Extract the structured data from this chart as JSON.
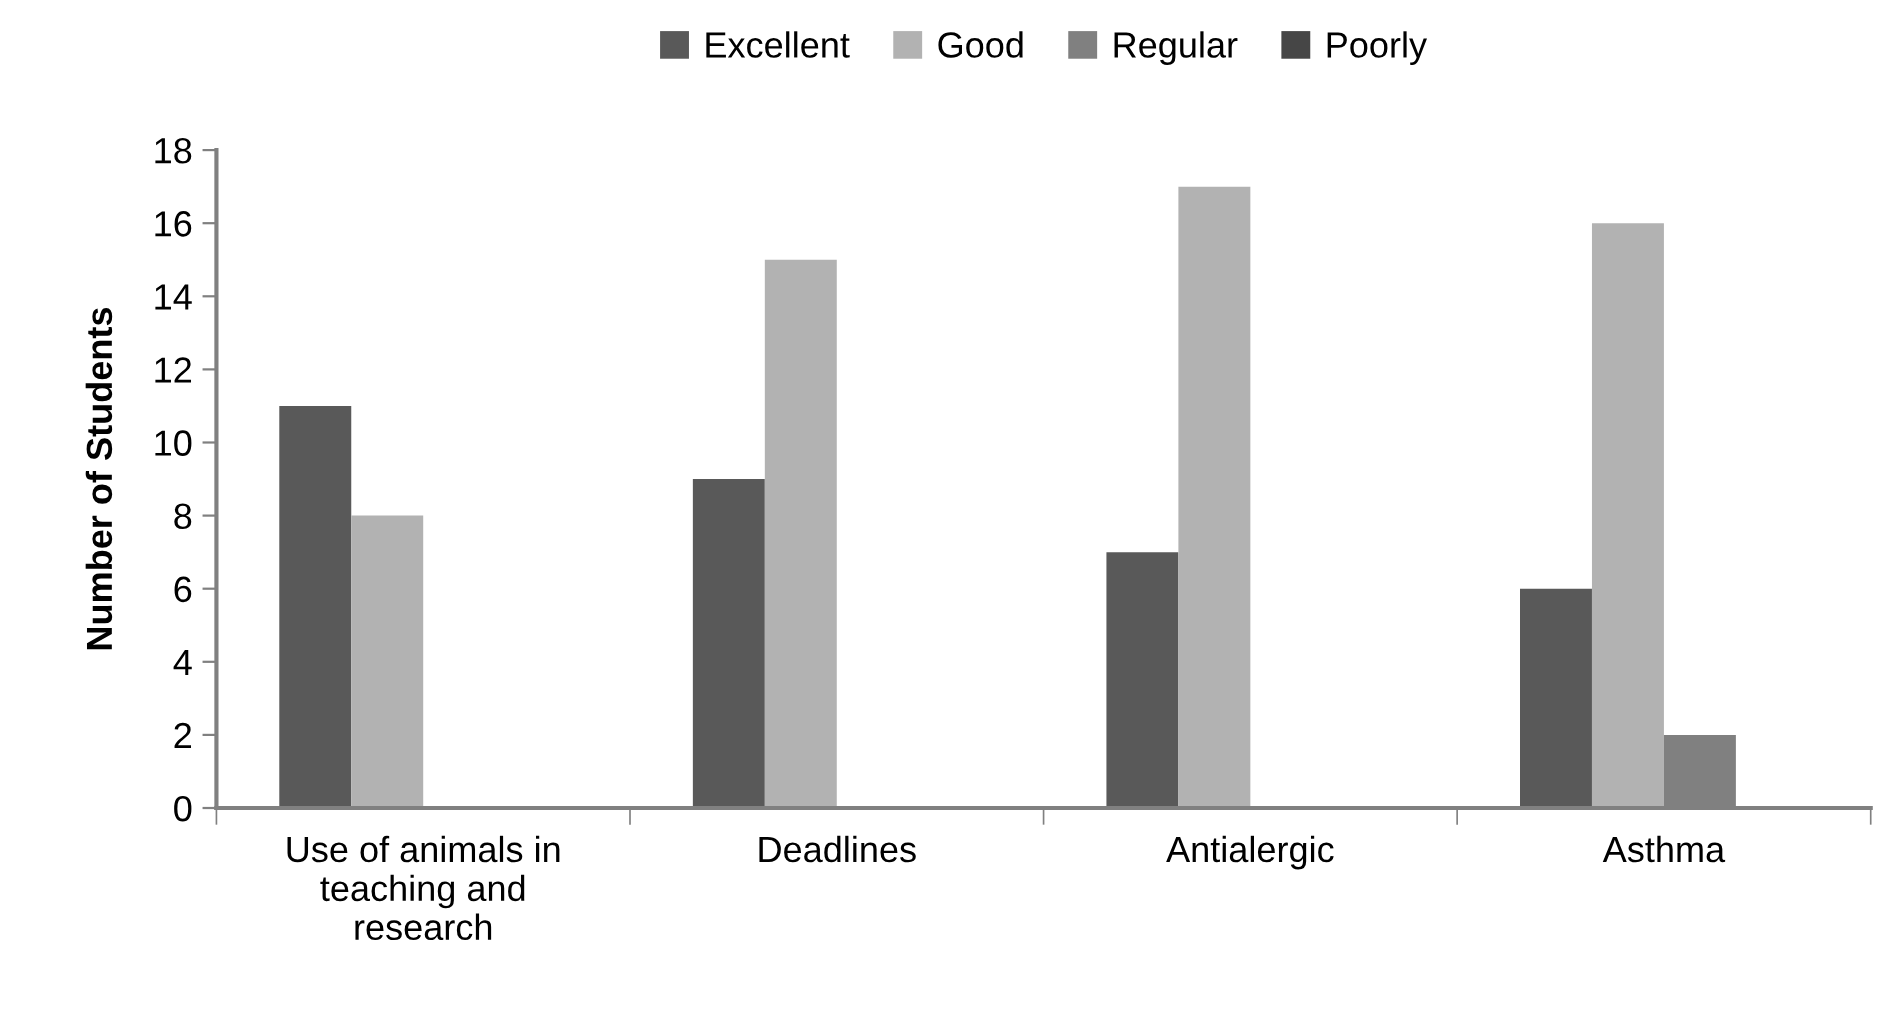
{
  "chart_data": {
    "type": "bar",
    "ylabel": "Number of Students",
    "categories": [
      "Use of animals in\nteaching and\nresearch",
      "Deadlines",
      "Antialergic",
      "Asthma"
    ],
    "series": [
      {
        "name": "Excellent",
        "color": "#595959",
        "values": [
          11,
          9,
          7,
          6
        ]
      },
      {
        "name": "Good",
        "color": "#b2b2b2",
        "values": [
          8,
          15,
          17,
          16
        ]
      },
      {
        "name": "Regular",
        "color": "#808080",
        "values": [
          0,
          0,
          0,
          2
        ]
      },
      {
        "name": "Poorly",
        "color": "#464646",
        "values": [
          0,
          0,
          0,
          0
        ]
      }
    ],
    "ylim": [
      0,
      18
    ],
    "yticks": [
      0,
      2,
      4,
      6,
      8,
      10,
      12,
      14,
      16,
      18
    ],
    "grid": false,
    "legend": "top"
  }
}
